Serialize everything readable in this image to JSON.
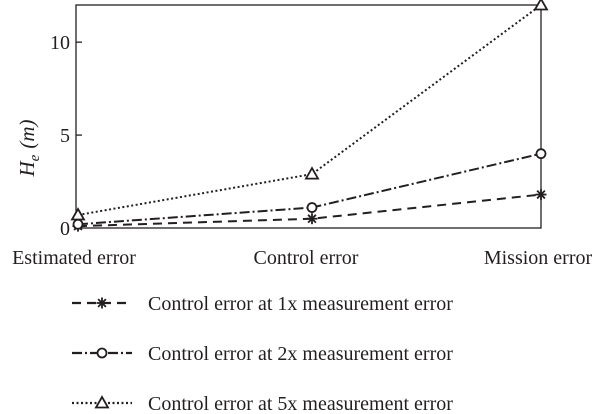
{
  "chart_data": {
    "type": "line",
    "categories": [
      "Estimated error",
      "Control error",
      "Mission error"
    ],
    "ylabel": {
      "main": "H",
      "sub": "e",
      "unit": "(m)"
    },
    "yticks": [
      0,
      5,
      10
    ],
    "ylim": [
      0,
      12
    ],
    "grid": false,
    "legend_position": "bottom",
    "series": [
      {
        "name": "Control error at 1x measurement error",
        "marker": "asterisk",
        "dash": "dashed",
        "values": [
          0.1,
          0.5,
          1.8
        ]
      },
      {
        "name": "Control error at 2x measurement error",
        "marker": "circle",
        "dash": "dashdot",
        "values": [
          0.2,
          1.1,
          4.0
        ]
      },
      {
        "name": "Control error at 5x measurement error",
        "marker": "triangle",
        "dash": "dotted",
        "values": [
          0.7,
          2.9,
          12.0
        ]
      }
    ]
  },
  "colors": {
    "ink": "#231f20",
    "background": "#ffffff"
  }
}
